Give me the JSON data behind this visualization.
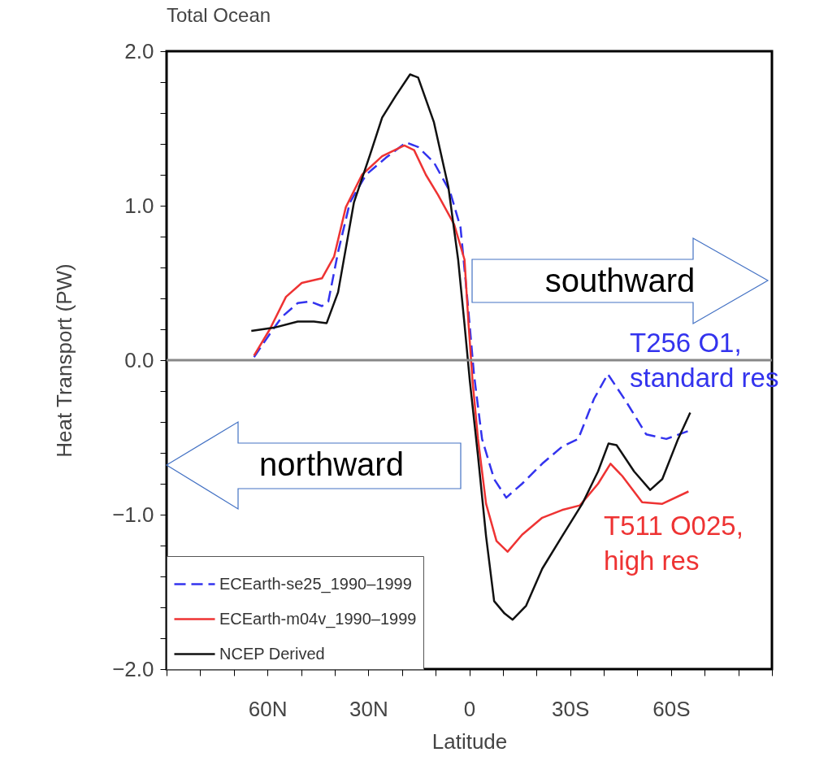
{
  "chart_data": {
    "type": "line",
    "title": "Total Ocean",
    "xlabel": "Latitude",
    "ylabel": "Heat Transport (PW)",
    "xlim": [
      90,
      -90
    ],
    "xticks": [
      {
        "value": 90,
        "label": null
      },
      {
        "value": 80,
        "label": null
      },
      {
        "value": 70,
        "label": null
      },
      {
        "value": 60,
        "label": "60N"
      },
      {
        "value": 50,
        "label": null
      },
      {
        "value": 40,
        "label": null
      },
      {
        "value": 30,
        "label": "30N"
      },
      {
        "value": 20,
        "label": null
      },
      {
        "value": 10,
        "label": null
      },
      0,
      {
        "value": -10,
        "label": null
      },
      {
        "value": -20,
        "label": null
      },
      {
        "value": -30,
        "label": "30S"
      },
      {
        "value": -40,
        "label": null
      },
      {
        "value": -50,
        "label": null
      },
      {
        "value": -60,
        "label": "60S"
      },
      {
        "value": -70,
        "label": null
      },
      {
        "value": -80,
        "label": null
      },
      {
        "value": -90,
        "label": null
      }
    ],
    "ylim": [
      -2,
      2
    ],
    "yticks": [
      {
        "value": -2,
        "label": "−2.0"
      },
      {
        "value": -1.8,
        "label": null
      },
      {
        "value": -1.6,
        "label": null
      },
      {
        "value": -1.4,
        "label": null
      },
      {
        "value": -1.2,
        "label": null
      },
      {
        "value": -1,
        "label": "−1.0"
      },
      {
        "value": -0.8,
        "label": null
      },
      {
        "value": -0.6,
        "label": null
      },
      {
        "value": -0.4,
        "label": null
      },
      {
        "value": -0.2,
        "label": null
      },
      {
        "value": 0,
        "label": "0.0"
      },
      {
        "value": 0.2,
        "label": null
      },
      {
        "value": 0.4,
        "label": null
      },
      {
        "value": 0.6,
        "label": null
      },
      {
        "value": 0.8,
        "label": null
      },
      {
        "value": 1,
        "label": "1.0"
      },
      {
        "value": 1.2,
        "label": null
      },
      {
        "value": 1.4,
        "label": null
      },
      {
        "value": 1.6,
        "label": null
      },
      {
        "value": 1.8,
        "label": null
      },
      {
        "value": 2,
        "label": "2.0"
      }
    ],
    "grid": false,
    "legend": "bottom left",
    "ref_lines": [
      {
        "axis": "y",
        "value": 0,
        "color": "#888888"
      }
    ],
    "series": [
      {
        "name": "ECEarth-se25_1990–1999",
        "color": "#3333ee",
        "line_style": "dashed",
        "x": [
          64,
          59.3,
          55.7,
          51,
          47.4,
          43.8,
          41.9,
          39,
          35.5,
          30.7,
          24.8,
          18.8,
          15.2,
          10.5,
          5.7,
          2.6,
          0.5,
          -1.4,
          -3.8,
          -7.4,
          -11,
          -15.7,
          -21.7,
          -27.6,
          -32.4,
          -37.1,
          -41.2,
          -46.7,
          -52.6,
          -58.6,
          -65
        ],
        "values": [
          0.02,
          0.17,
          0.28,
          0.37,
          0.38,
          0.35,
          0.38,
          0.7,
          1.02,
          1.2,
          1.31,
          1.41,
          1.38,
          1.28,
          1.09,
          0.86,
          0.38,
          -0.09,
          -0.51,
          -0.77,
          -0.89,
          -0.8,
          -0.67,
          -0.56,
          -0.51,
          -0.25,
          -0.09,
          -0.27,
          -0.48,
          -0.51,
          -0.46
        ]
      },
      {
        "name": "ECEarth-m04v_1990–1999",
        "color": "#ee3333",
        "line_style": "solid",
        "x": [
          64,
          59.3,
          54.5,
          49.8,
          43.8,
          40.2,
          36.7,
          31.9,
          25.9,
          19.3,
          16.4,
          12.9,
          9.3,
          4.5,
          1.4,
          0.2,
          -1,
          -2.6,
          -5,
          -8.1,
          -11.4,
          -15.7,
          -21.7,
          -27.6,
          -32.9,
          -38.3,
          -42,
          -45.5,
          -51.4,
          -57.4,
          -65.2
        ],
        "values": [
          0.03,
          0.2,
          0.41,
          0.5,
          0.53,
          0.67,
          0.99,
          1.2,
          1.32,
          1.39,
          1.36,
          1.2,
          1.07,
          0.88,
          0.65,
          0.23,
          -0.14,
          -0.51,
          -0.93,
          -1.17,
          -1.24,
          -1.13,
          -1.02,
          -0.97,
          -0.94,
          -0.8,
          -0.67,
          -0.75,
          -0.92,
          -0.93,
          -0.85
        ]
      },
      {
        "name": "NCEP Derived",
        "color": "#111111",
        "line_style": "solid",
        "x": [
          64.8,
          58.1,
          51,
          46.2,
          42.4,
          39,
          34.3,
          29.5,
          25.9,
          21.9,
          17.6,
          15.2,
          10.5,
          6.2,
          3.3,
          1.4,
          -0.2,
          -2.6,
          -5,
          -7.4,
          -10.5,
          -12.9,
          -16.9,
          -21.7,
          -27.6,
          -33.6,
          -38.3,
          -41.4,
          -43.8,
          -49,
          -53.8,
          -57.4,
          -62.1,
          -65.7
        ],
        "values": [
          0.19,
          0.21,
          0.25,
          0.25,
          0.24,
          0.44,
          1.02,
          1.33,
          1.57,
          1.71,
          1.85,
          1.83,
          1.54,
          1.12,
          0.65,
          0.23,
          -0.14,
          -0.62,
          -1.14,
          -1.56,
          -1.64,
          -1.68,
          -1.59,
          -1.35,
          -1.14,
          -0.93,
          -0.72,
          -0.54,
          -0.55,
          -0.72,
          -0.84,
          -0.77,
          -0.51,
          -0.34
        ]
      }
    ],
    "annotations": [
      "southward",
      "northward",
      "T256 O1,\nstandard res",
      "T511 O025,\nhigh res"
    ]
  }
}
